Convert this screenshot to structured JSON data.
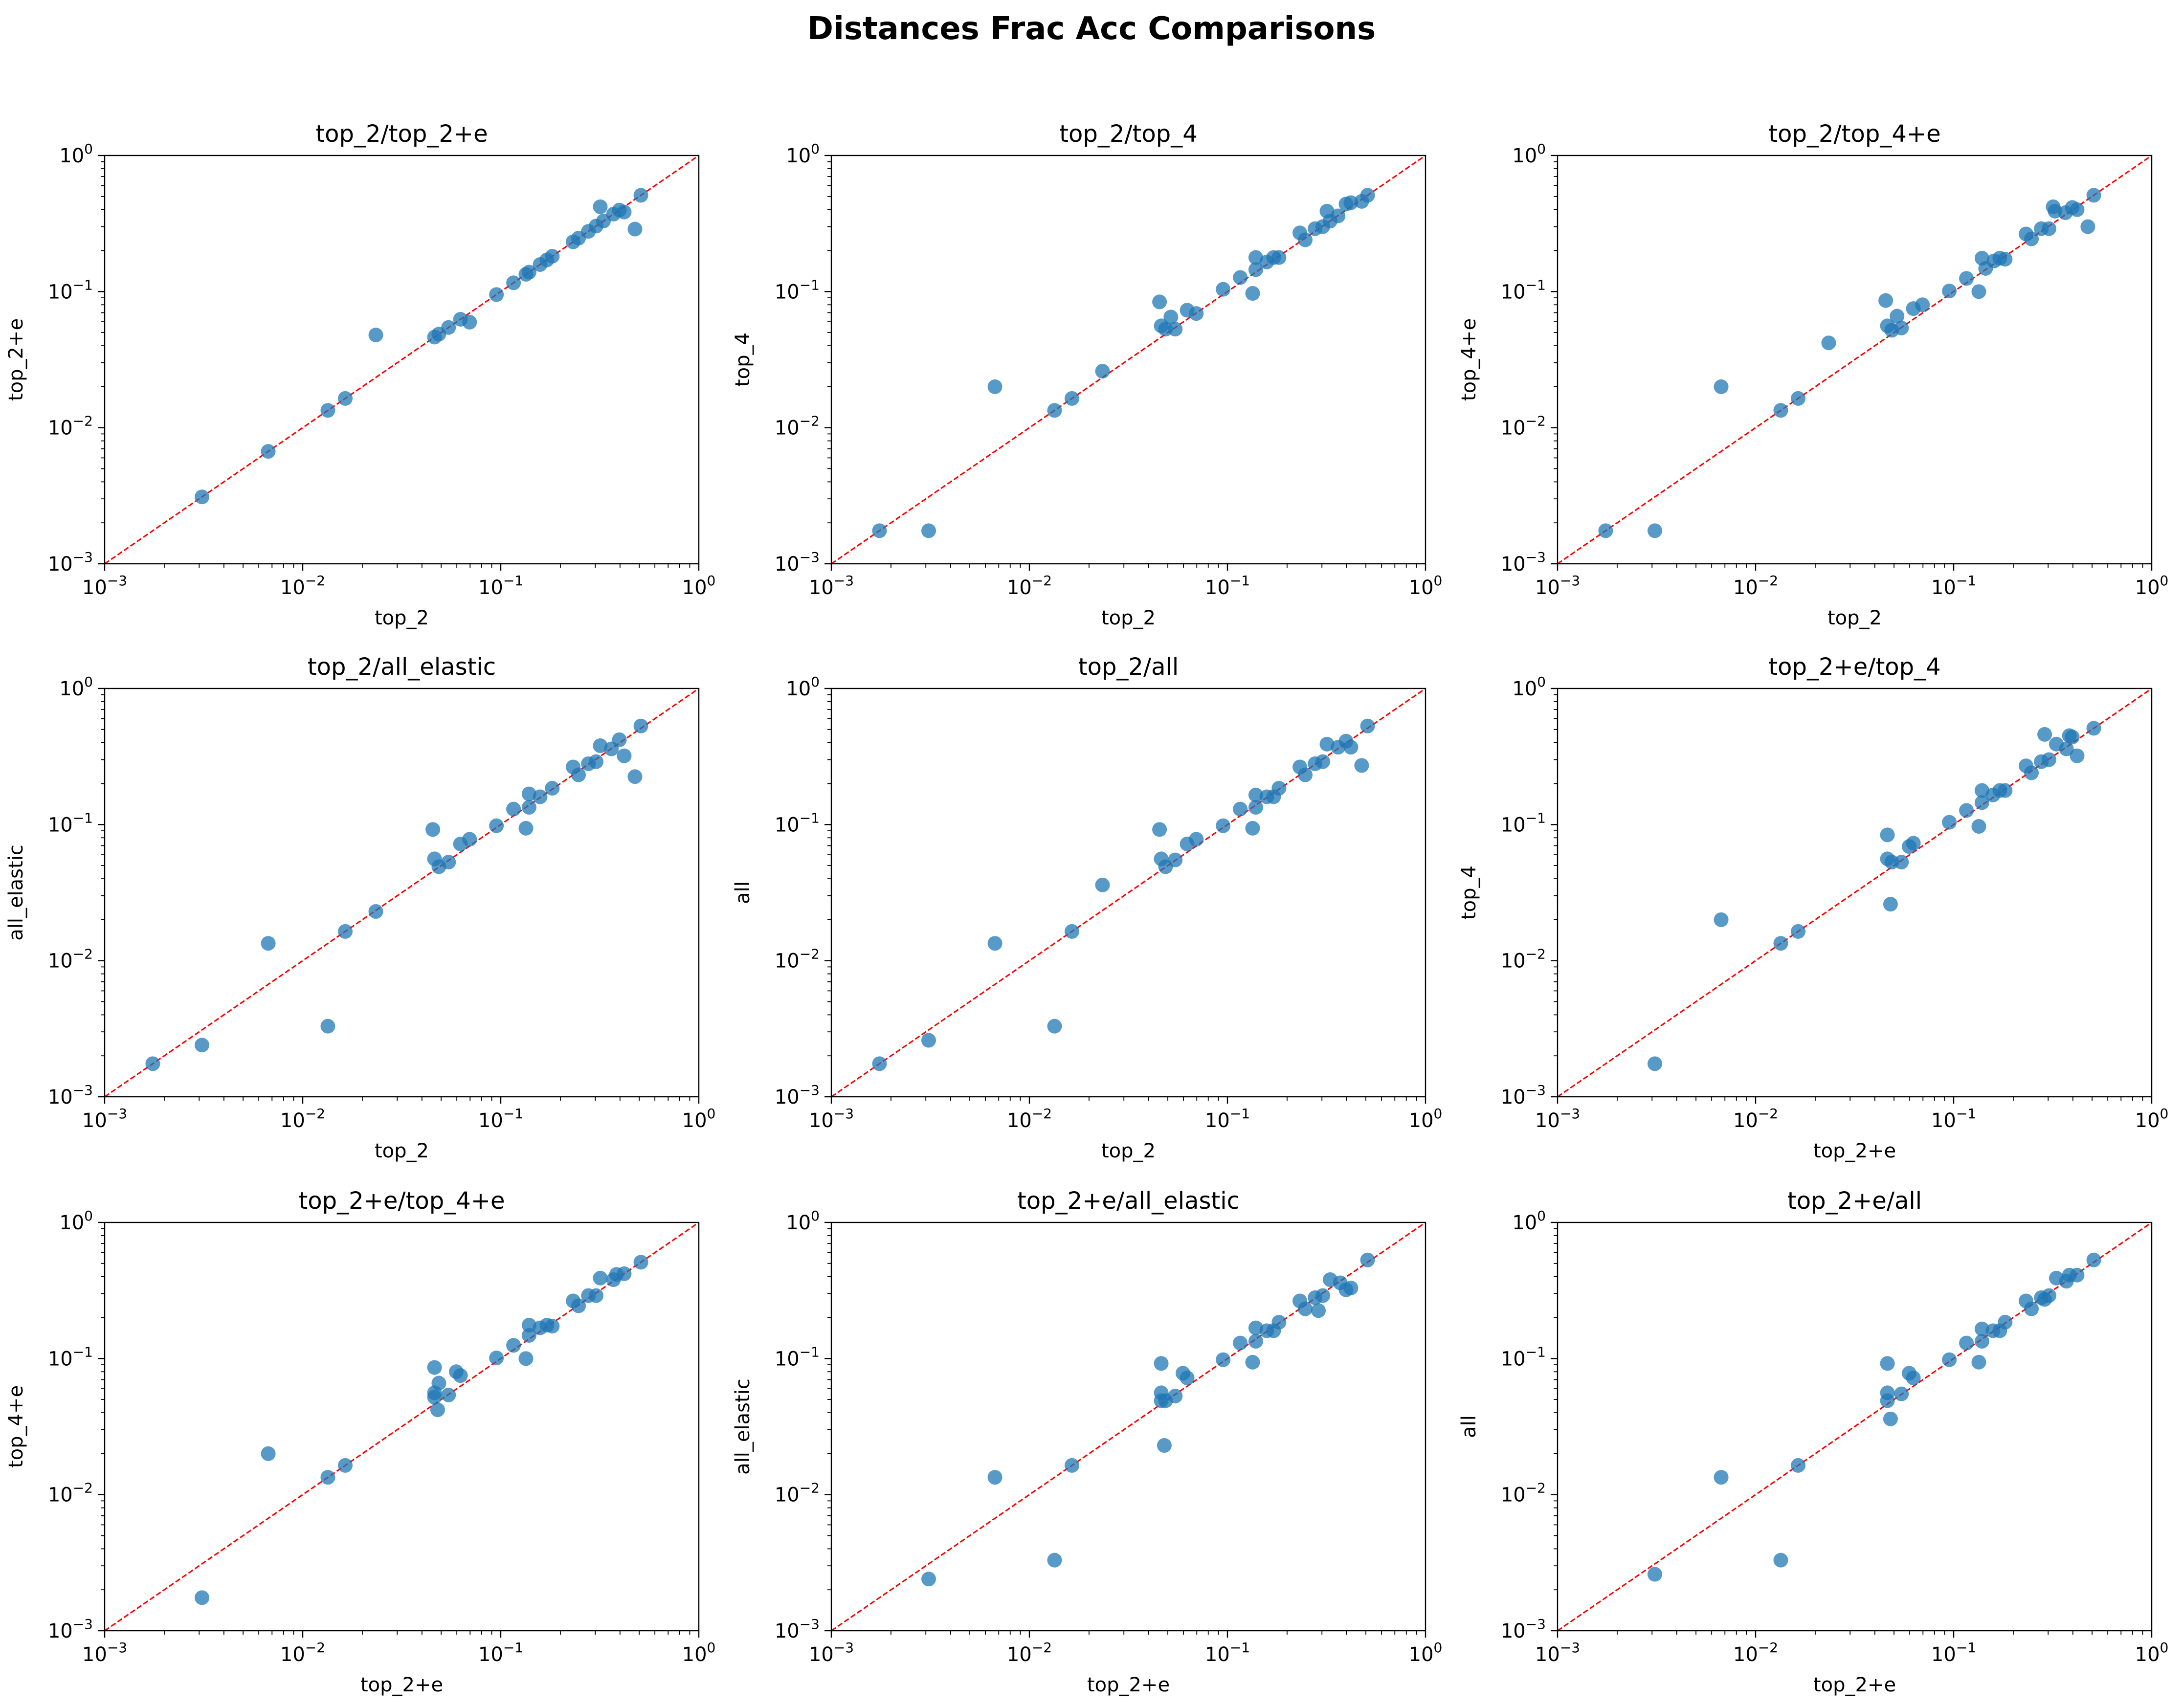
{
  "figure": {
    "title": "Distances Frac Acc Comparisons",
    "tick_base": "10",
    "tick_exponents": [
      "−3",
      "−2",
      "−1",
      "0"
    ],
    "colors": {
      "point": "#1f77b4",
      "reference_line": "#ff0000",
      "axes": "#000000"
    }
  },
  "chart_data": [
    {
      "type": "scatter",
      "title": "top_2/top_2+e",
      "xlabel": "top_2",
      "ylabel": "top_2+e",
      "xscale": "log",
      "yscale": "log",
      "xlim": [
        0.001,
        1
      ],
      "ylim": [
        0.001,
        1
      ],
      "reference_line": "y = x",
      "points": [
        [
          0.0031,
          0.0031
        ],
        [
          0.0067,
          0.0067
        ],
        [
          0.0134,
          0.0134
        ],
        [
          0.0164,
          0.0164
        ],
        [
          0.0234,
          0.048
        ],
        [
          0.0463,
          0.0463
        ],
        [
          0.0487,
          0.0487
        ],
        [
          0.0545,
          0.0545
        ],
        [
          0.0626,
          0.0626
        ],
        [
          0.0696,
          0.0596
        ],
        [
          0.0951,
          0.0951
        ],
        [
          0.116,
          0.116
        ],
        [
          0.134,
          0.134
        ],
        [
          0.139,
          0.139
        ],
        [
          0.158,
          0.158
        ],
        [
          0.171,
          0.171
        ],
        [
          0.182,
          0.182
        ],
        [
          0.232,
          0.232
        ],
        [
          0.247,
          0.247
        ],
        [
          0.277,
          0.277
        ],
        [
          0.303,
          0.303
        ],
        [
          0.318,
          0.42
        ],
        [
          0.33,
          0.33
        ],
        [
          0.371,
          0.371
        ],
        [
          0.397,
          0.397
        ],
        [
          0.42,
          0.384
        ],
        [
          0.476,
          0.288
        ],
        [
          0.51,
          0.51
        ]
      ]
    },
    {
      "type": "scatter",
      "title": "top_2/top_4",
      "xlabel": "top_2",
      "ylabel": "top_4",
      "xscale": "log",
      "yscale": "log",
      "xlim": [
        0.001,
        1
      ],
      "ylim": [
        0.001,
        1
      ],
      "reference_line": "y = x",
      "points": [
        [
          0.00175,
          0.00175
        ],
        [
          0.0031,
          0.00175
        ],
        [
          0.0067,
          0.02
        ],
        [
          0.0134,
          0.0134
        ],
        [
          0.0164,
          0.0164
        ],
        [
          0.0234,
          0.026
        ],
        [
          0.0454,
          0.084
        ],
        [
          0.0463,
          0.056
        ],
        [
          0.0487,
          0.053
        ],
        [
          0.0518,
          0.065
        ],
        [
          0.0545,
          0.053
        ],
        [
          0.0626,
          0.073
        ],
        [
          0.0696,
          0.069
        ],
        [
          0.0951,
          0.104
        ],
        [
          0.116,
          0.127
        ],
        [
          0.134,
          0.097
        ],
        [
          0.139,
          0.178
        ],
        [
          0.139,
          0.145
        ],
        [
          0.158,
          0.165
        ],
        [
          0.171,
          0.178
        ],
        [
          0.182,
          0.178
        ],
        [
          0.232,
          0.27
        ],
        [
          0.247,
          0.24
        ],
        [
          0.277,
          0.29
        ],
        [
          0.303,
          0.3
        ],
        [
          0.318,
          0.39
        ],
        [
          0.33,
          0.33
        ],
        [
          0.362,
          0.36
        ],
        [
          0.397,
          0.44
        ],
        [
          0.42,
          0.45
        ],
        [
          0.476,
          0.46
        ],
        [
          0.51,
          0.51
        ]
      ]
    },
    {
      "type": "scatter",
      "title": "top_2/top_4+e",
      "xlabel": "top_2",
      "ylabel": "top_4+e",
      "xscale": "log",
      "yscale": "log",
      "xlim": [
        0.001,
        1
      ],
      "ylim": [
        0.001,
        1
      ],
      "reference_line": "y = x",
      "points": [
        [
          0.00175,
          0.00175
        ],
        [
          0.0031,
          0.00175
        ],
        [
          0.0067,
          0.02
        ],
        [
          0.0134,
          0.0134
        ],
        [
          0.0164,
          0.0164
        ],
        [
          0.0234,
          0.042
        ],
        [
          0.0454,
          0.086
        ],
        [
          0.0463,
          0.056
        ],
        [
          0.0487,
          0.052
        ],
        [
          0.0518,
          0.066
        ],
        [
          0.0545,
          0.054
        ],
        [
          0.0626,
          0.075
        ],
        [
          0.0696,
          0.08
        ],
        [
          0.0951,
          0.101
        ],
        [
          0.116,
          0.125
        ],
        [
          0.134,
          0.1
        ],
        [
          0.139,
          0.176
        ],
        [
          0.145,
          0.148
        ],
        [
          0.16,
          0.168
        ],
        [
          0.171,
          0.176
        ],
        [
          0.182,
          0.173
        ],
        [
          0.232,
          0.265
        ],
        [
          0.247,
          0.244
        ],
        [
          0.277,
          0.29
        ],
        [
          0.303,
          0.29
        ],
        [
          0.318,
          0.42
        ],
        [
          0.325,
          0.39
        ],
        [
          0.367,
          0.38
        ],
        [
          0.397,
          0.415
        ],
        [
          0.42,
          0.4
        ],
        [
          0.476,
          0.3
        ],
        [
          0.51,
          0.51
        ]
      ]
    },
    {
      "type": "scatter",
      "title": "top_2/all_elastic",
      "xlabel": "top_2",
      "ylabel": "all_elastic",
      "xscale": "log",
      "yscale": "log",
      "xlim": [
        0.001,
        1
      ],
      "ylim": [
        0.001,
        1
      ],
      "reference_line": "y = x",
      "points": [
        [
          0.00175,
          0.00175
        ],
        [
          0.0031,
          0.0024
        ],
        [
          0.0067,
          0.0134
        ],
        [
          0.0134,
          0.0033
        ],
        [
          0.0164,
          0.0164
        ],
        [
          0.0234,
          0.023
        ],
        [
          0.0454,
          0.092
        ],
        [
          0.0463,
          0.056
        ],
        [
          0.0487,
          0.049
        ],
        [
          0.0545,
          0.053
        ],
        [
          0.0626,
          0.072
        ],
        [
          0.0696,
          0.078
        ],
        [
          0.0951,
          0.098
        ],
        [
          0.116,
          0.13
        ],
        [
          0.134,
          0.094
        ],
        [
          0.139,
          0.168
        ],
        [
          0.139,
          0.134
        ],
        [
          0.158,
          0.16
        ],
        [
          0.182,
          0.185
        ],
        [
          0.232,
          0.265
        ],
        [
          0.247,
          0.232
        ],
        [
          0.277,
          0.28
        ],
        [
          0.303,
          0.29
        ],
        [
          0.318,
          0.38
        ],
        [
          0.362,
          0.36
        ],
        [
          0.397,
          0.42
        ],
        [
          0.42,
          0.32
        ],
        [
          0.476,
          0.225
        ],
        [
          0.51,
          0.53
        ]
      ]
    },
    {
      "type": "scatter",
      "title": "top_2/all",
      "xlabel": "top_2",
      "ylabel": "all",
      "xscale": "log",
      "yscale": "log",
      "xlim": [
        0.001,
        1
      ],
      "ylim": [
        0.001,
        1
      ],
      "reference_line": "y = x",
      "points": [
        [
          0.00175,
          0.00175
        ],
        [
          0.0031,
          0.0026
        ],
        [
          0.0067,
          0.0134
        ],
        [
          0.0134,
          0.0033
        ],
        [
          0.0164,
          0.0164
        ],
        [
          0.0234,
          0.036
        ],
        [
          0.0454,
          0.092
        ],
        [
          0.0463,
          0.056
        ],
        [
          0.0487,
          0.049
        ],
        [
          0.0545,
          0.055
        ],
        [
          0.0626,
          0.072
        ],
        [
          0.0696,
          0.078
        ],
        [
          0.0951,
          0.098
        ],
        [
          0.116,
          0.13
        ],
        [
          0.134,
          0.094
        ],
        [
          0.139,
          0.165
        ],
        [
          0.139,
          0.134
        ],
        [
          0.158,
          0.16
        ],
        [
          0.171,
          0.16
        ],
        [
          0.182,
          0.185
        ],
        [
          0.232,
          0.265
        ],
        [
          0.247,
          0.232
        ],
        [
          0.277,
          0.28
        ],
        [
          0.303,
          0.29
        ],
        [
          0.318,
          0.39
        ],
        [
          0.362,
          0.37
        ],
        [
          0.397,
          0.41
        ],
        [
          0.42,
          0.37
        ],
        [
          0.476,
          0.272
        ],
        [
          0.51,
          0.53
        ]
      ]
    },
    {
      "type": "scatter",
      "title": "top_2+e/top_4",
      "xlabel": "top_2+e",
      "ylabel": "top_4",
      "xscale": "log",
      "yscale": "log",
      "xlim": [
        0.001,
        1
      ],
      "ylim": [
        0.001,
        1
      ],
      "reference_line": "y = x",
      "points": [
        [
          0.0031,
          0.00175
        ],
        [
          0.0067,
          0.02
        ],
        [
          0.0134,
          0.0134
        ],
        [
          0.0164,
          0.0164
        ],
        [
          0.0463,
          0.084
        ],
        [
          0.0463,
          0.056
        ],
        [
          0.048,
          0.026
        ],
        [
          0.0487,
          0.053
        ],
        [
          0.0545,
          0.053
        ],
        [
          0.0596,
          0.069
        ],
        [
          0.0626,
          0.073
        ],
        [
          0.0951,
          0.104
        ],
        [
          0.116,
          0.127
        ],
        [
          0.134,
          0.097
        ],
        [
          0.139,
          0.178
        ],
        [
          0.139,
          0.145
        ],
        [
          0.158,
          0.165
        ],
        [
          0.171,
          0.178
        ],
        [
          0.182,
          0.178
        ],
        [
          0.232,
          0.27
        ],
        [
          0.247,
          0.24
        ],
        [
          0.277,
          0.29
        ],
        [
          0.288,
          0.46
        ],
        [
          0.303,
          0.3
        ],
        [
          0.33,
          0.39
        ],
        [
          0.371,
          0.36
        ],
        [
          0.384,
          0.45
        ],
        [
          0.397,
          0.44
        ],
        [
          0.42,
          0.32
        ],
        [
          0.51,
          0.51
        ]
      ]
    },
    {
      "type": "scatter",
      "title": "top_2+e/top_4+e",
      "xlabel": "top_2+e",
      "ylabel": "top_4+e",
      "xscale": "log",
      "yscale": "log",
      "xlim": [
        0.001,
        1
      ],
      "ylim": [
        0.001,
        1
      ],
      "reference_line": "y = x",
      "points": [
        [
          0.0031,
          0.00175
        ],
        [
          0.0067,
          0.02
        ],
        [
          0.0134,
          0.0134
        ],
        [
          0.0164,
          0.0164
        ],
        [
          0.0463,
          0.086
        ],
        [
          0.0463,
          0.056
        ],
        [
          0.0463,
          0.052
        ],
        [
          0.048,
          0.042
        ],
        [
          0.0487,
          0.066
        ],
        [
          0.0545,
          0.054
        ],
        [
          0.0596,
          0.08
        ],
        [
          0.0626,
          0.075
        ],
        [
          0.0951,
          0.101
        ],
        [
          0.116,
          0.125
        ],
        [
          0.134,
          0.1
        ],
        [
          0.139,
          0.176
        ],
        [
          0.139,
          0.148
        ],
        [
          0.158,
          0.168
        ],
        [
          0.171,
          0.176
        ],
        [
          0.182,
          0.173
        ],
        [
          0.232,
          0.265
        ],
        [
          0.247,
          0.244
        ],
        [
          0.277,
          0.29
        ],
        [
          0.303,
          0.29
        ],
        [
          0.318,
          0.39
        ],
        [
          0.371,
          0.38
        ],
        [
          0.384,
          0.415
        ],
        [
          0.42,
          0.42
        ],
        [
          0.51,
          0.51
        ]
      ]
    },
    {
      "type": "scatter",
      "title": "top_2+e/all_elastic",
      "xlabel": "top_2+e",
      "ylabel": "all_elastic",
      "xscale": "log",
      "yscale": "log",
      "xlim": [
        0.001,
        1
      ],
      "ylim": [
        0.001,
        1
      ],
      "reference_line": "y = x",
      "points": [
        [
          0.0031,
          0.0024
        ],
        [
          0.0067,
          0.0134
        ],
        [
          0.0134,
          0.0033
        ],
        [
          0.0164,
          0.0164
        ],
        [
          0.0463,
          0.092
        ],
        [
          0.0463,
          0.056
        ],
        [
          0.0463,
          0.049
        ],
        [
          0.048,
          0.023
        ],
        [
          0.0487,
          0.049
        ],
        [
          0.0545,
          0.053
        ],
        [
          0.0596,
          0.078
        ],
        [
          0.0626,
          0.072
        ],
        [
          0.0951,
          0.098
        ],
        [
          0.116,
          0.13
        ],
        [
          0.134,
          0.094
        ],
        [
          0.139,
          0.168
        ],
        [
          0.139,
          0.134
        ],
        [
          0.158,
          0.16
        ],
        [
          0.171,
          0.16
        ],
        [
          0.182,
          0.185
        ],
        [
          0.232,
          0.265
        ],
        [
          0.247,
          0.232
        ],
        [
          0.277,
          0.28
        ],
        [
          0.288,
          0.225
        ],
        [
          0.303,
          0.29
        ],
        [
          0.33,
          0.38
        ],
        [
          0.371,
          0.36
        ],
        [
          0.397,
          0.32
        ],
        [
          0.42,
          0.33
        ],
        [
          0.51,
          0.53
        ]
      ]
    },
    {
      "type": "scatter",
      "title": "top_2+e/all",
      "xlabel": "top_2+e",
      "ylabel": "all",
      "xscale": "log",
      "yscale": "log",
      "xlim": [
        0.001,
        1
      ],
      "ylim": [
        0.001,
        1
      ],
      "reference_line": "y = x",
      "points": [
        [
          0.0031,
          0.0026
        ],
        [
          0.0067,
          0.0134
        ],
        [
          0.0134,
          0.0033
        ],
        [
          0.0164,
          0.0164
        ],
        [
          0.0463,
          0.092
        ],
        [
          0.0463,
          0.056
        ],
        [
          0.0463,
          0.049
        ],
        [
          0.048,
          0.036
        ],
        [
          0.0545,
          0.055
        ],
        [
          0.0596,
          0.078
        ],
        [
          0.0626,
          0.072
        ],
        [
          0.0951,
          0.098
        ],
        [
          0.116,
          0.13
        ],
        [
          0.134,
          0.094
        ],
        [
          0.139,
          0.165
        ],
        [
          0.139,
          0.134
        ],
        [
          0.158,
          0.16
        ],
        [
          0.171,
          0.16
        ],
        [
          0.182,
          0.185
        ],
        [
          0.232,
          0.265
        ],
        [
          0.247,
          0.232
        ],
        [
          0.277,
          0.28
        ],
        [
          0.288,
          0.272
        ],
        [
          0.303,
          0.29
        ],
        [
          0.33,
          0.39
        ],
        [
          0.371,
          0.37
        ],
        [
          0.384,
          0.41
        ],
        [
          0.42,
          0.41
        ],
        [
          0.51,
          0.53
        ]
      ]
    }
  ]
}
